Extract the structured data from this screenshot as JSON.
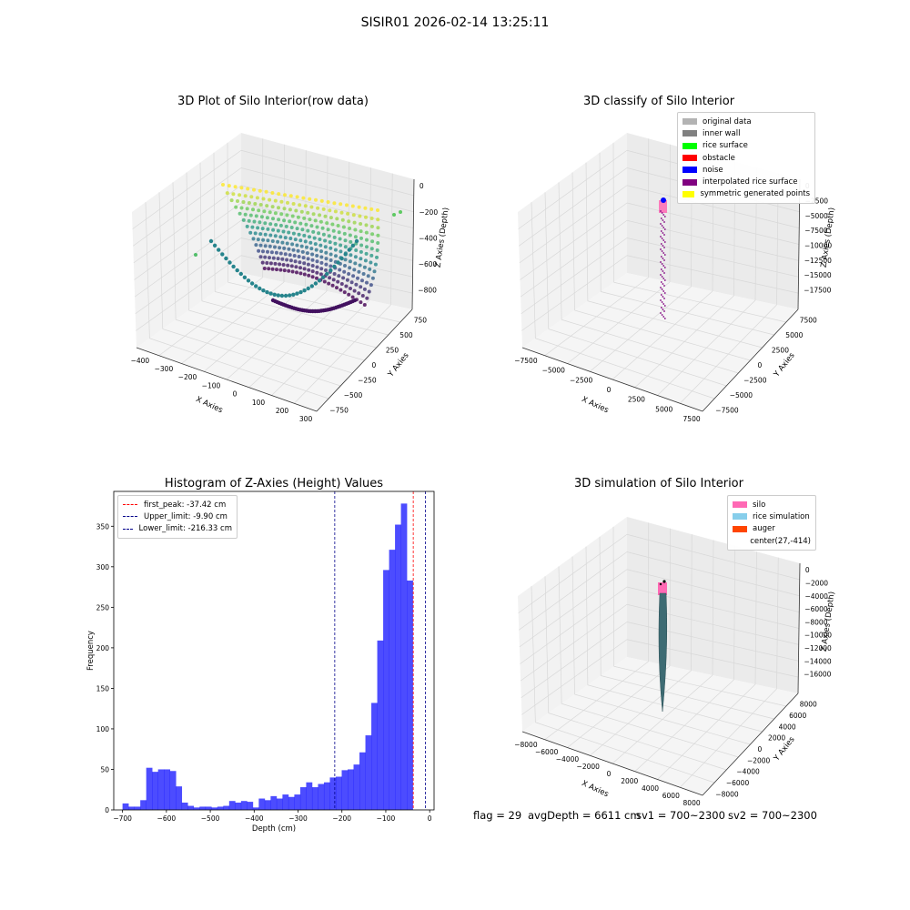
{
  "suptitle": "SISIR01 2026-02-14 13:25:11",
  "panels": {
    "raw": {
      "title": "3D Plot of Silo Interior(row data)",
      "xlabel": "X Axies",
      "ylabel": "Y Axies",
      "zlabel": "Z Axies (Depth)",
      "xticks": [
        "−400",
        "−300",
        "−200",
        "−100",
        "0",
        "100",
        "200",
        "300"
      ],
      "yticks": [
        "−750",
        "−500",
        "−250",
        "0",
        "250",
        "500",
        "750"
      ],
      "zticks": [
        "0",
        "−200",
        "−400",
        "−600",
        "−800"
      ],
      "colormap": "viridis"
    },
    "classify": {
      "title": "3D classify of Silo Interior",
      "xlabel": "X Axies",
      "ylabel": "Y Axies",
      "zlabel": "Z Axies (Depth)",
      "xticks": [
        "−7500",
        "−5000",
        "−2500",
        "0",
        "2500",
        "5000",
        "7500"
      ],
      "yticks": [
        "−7500",
        "−5000",
        "−2500",
        "0",
        "2500",
        "5000",
        "7500"
      ],
      "zticks": [
        "0",
        "−2500",
        "−5000",
        "−7500",
        "−10000",
        "−12500",
        "−15000",
        "−17500"
      ],
      "legend": [
        {
          "label": "original data",
          "color": "#b3b3b3"
        },
        {
          "label": "inner wall",
          "color": "#808080"
        },
        {
          "label": "rice surface",
          "color": "#00ff00"
        },
        {
          "label": "obstacle",
          "color": "#ff0000"
        },
        {
          "label": "noise",
          "color": "#0000ff"
        },
        {
          "label": "interpolated rice surface",
          "color": "#800080"
        },
        {
          "label": "symmetric generated points",
          "color": "#ffff00"
        }
      ]
    },
    "simulation": {
      "title": "3D simulation of Silo Interior",
      "xlabel": "X Axies",
      "ylabel": "Y Axies",
      "zlabel": "Z Axies (Depth)",
      "xticks": [
        "−8000",
        "−6000",
        "−4000",
        "−2000",
        "0",
        "2000",
        "4000",
        "6000",
        "8000"
      ],
      "yticks": [
        "−8000",
        "−6000",
        "−4000",
        "−2000",
        "0",
        "2000",
        "4000",
        "6000",
        "8000"
      ],
      "zticks": [
        "0",
        "−2000",
        "−4000",
        "−6000",
        "−8000",
        "−10000",
        "−12000",
        "−14000",
        "−16000"
      ],
      "legend": [
        {
          "label": "silo",
          "color": "#ff69b4"
        },
        {
          "label": "rice simulation",
          "color": "#87ceeb"
        },
        {
          "label": "auger",
          "color": "#ff4500"
        },
        {
          "label": "center(27,-414)",
          "color": ""
        }
      ]
    }
  },
  "chart_data": {
    "type": "bar",
    "title": "Histogram of Z-Axies (Height) Values",
    "xlabel": "Depth (cm)",
    "ylabel": "Frequency",
    "xlim": [
      -720,
      10
    ],
    "ylim": [
      0,
      393
    ],
    "xticks": [
      -700,
      -600,
      -500,
      -400,
      -300,
      -200,
      -100,
      0
    ],
    "xtick_labels": [
      "−700",
      "−600",
      "−500",
      "−400",
      "−300",
      "−200",
      "−100",
      "0"
    ],
    "yticks": [
      0,
      50,
      100,
      150,
      200,
      250,
      300,
      350
    ],
    "bar_color": "#0000ff",
    "bin_start": -700,
    "bin_width": 13.5,
    "values": [
      8,
      4,
      4,
      12,
      52,
      47,
      50,
      50,
      48,
      29,
      9,
      5,
      3,
      4,
      4,
      3,
      4,
      5,
      11,
      9,
      11,
      10,
      3,
      14,
      12,
      17,
      14,
      19,
      16,
      19,
      28,
      34,
      28,
      32,
      34,
      40,
      41,
      49,
      50,
      56,
      71,
      92,
      132,
      209,
      296,
      321,
      352,
      378,
      283
    ],
    "lines": [
      {
        "label": "first_peak: -37.42 cm",
        "value": -37.42,
        "color": "#ff0000"
      },
      {
        "label": "Upper_limit: -9.90 cm",
        "value": -9.9,
        "color": "#00008b"
      },
      {
        "label": "Lower_limit: -216.33 cm",
        "value": -216.33,
        "color": "#00008b"
      }
    ],
    "legend_position": "upper left"
  },
  "footer": {
    "flag": "flag = 29",
    "avg": "avgDepth = 6611 cm",
    "sv1": "sv1 = 700~2300",
    "sv2": "sv2 = 700~2300"
  }
}
